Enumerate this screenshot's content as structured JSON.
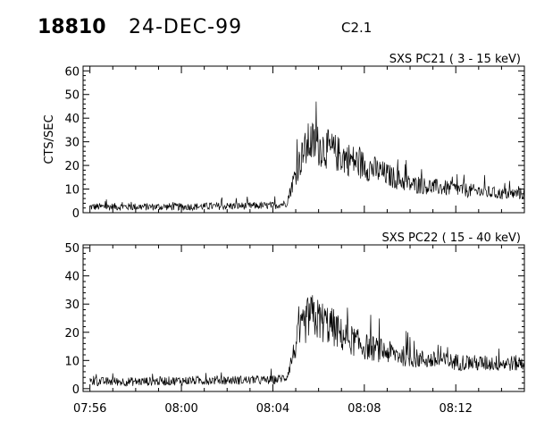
{
  "header": {
    "event_id": "18810",
    "date": "24-DEC-99",
    "flare_class": "C2.1"
  },
  "chart_data": [
    {
      "type": "line",
      "title": "SXS PC21  (  3 - 15 keV)",
      "ylabel": "CTS/SEC",
      "xlabel": "",
      "ylim": [
        0,
        62
      ],
      "yticks": [
        0,
        10,
        20,
        30,
        40,
        50,
        60
      ],
      "xticks": [
        "07:56",
        "08:00",
        "08:04",
        "08:08",
        "08:12"
      ],
      "xlim_minutes": [
        -0.3,
        19.0
      ],
      "grid": false,
      "series": [
        {
          "name": "",
          "x_minutes": [
            0,
            2,
            4,
            6,
            8,
            8.6,
            9.1,
            9.6,
            10.1,
            10.6,
            11,
            12,
            13,
            14,
            15,
            16,
            17,
            18,
            19
          ],
          "values": [
            2.5,
            2.5,
            2.5,
            2.8,
            3.0,
            4,
            20,
            30,
            28,
            26,
            24,
            20,
            16,
            12,
            11,
            10,
            9,
            8,
            8
          ]
        }
      ]
    },
    {
      "type": "line",
      "title": "SXS PC22  ( 15 - 40 keV)",
      "ylabel": "",
      "xlabel": "",
      "ylim": [
        -1,
        51
      ],
      "yticks": [
        0,
        10,
        20,
        30,
        40,
        50
      ],
      "xticks": [
        "07:56",
        "08:00",
        "08:04",
        "08:08",
        "08:12"
      ],
      "xlim_minutes": [
        -0.3,
        19.0
      ],
      "grid": false,
      "series": [
        {
          "name": "",
          "x_minutes": [
            0,
            2,
            4,
            6,
            8,
            8.6,
            9.1,
            9.6,
            10.1,
            10.6,
            11,
            12,
            13,
            14,
            15,
            16,
            17,
            18,
            19
          ],
          "values": [
            2.5,
            2.5,
            2.8,
            3.0,
            3.0,
            4,
            18,
            26,
            24,
            22,
            19,
            15,
            13,
            11,
            10,
            9.5,
            9,
            9,
            9
          ]
        }
      ]
    }
  ]
}
